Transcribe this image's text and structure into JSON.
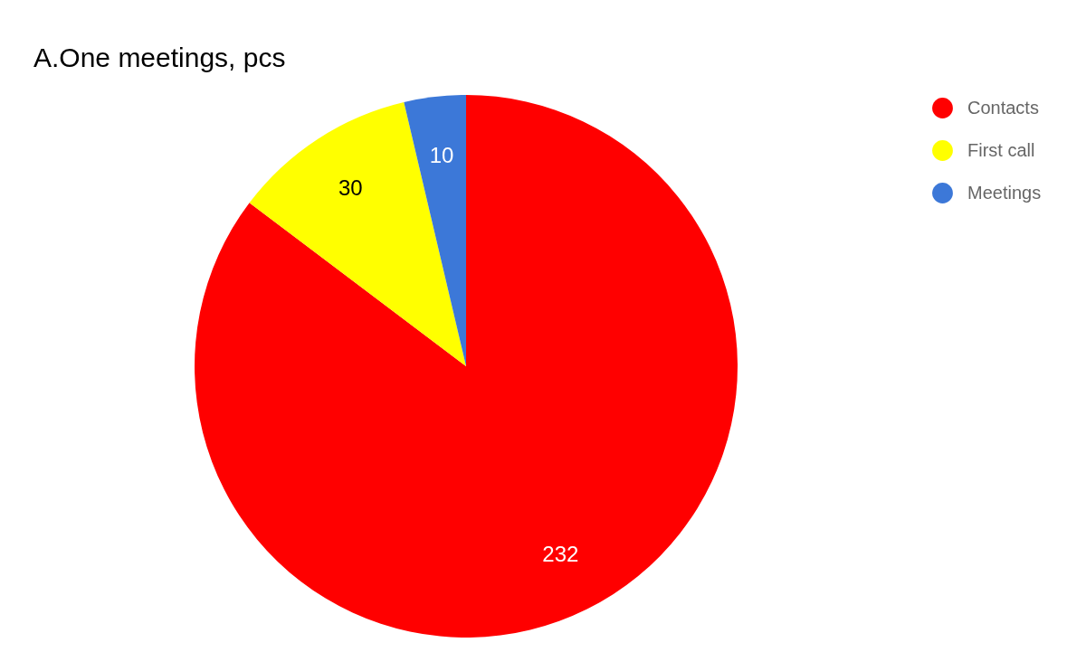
{
  "chart_data": {
    "type": "pie",
    "title": "A.One meetings, pcs",
    "categories": [
      "Contacts",
      "First call",
      "Meetings"
    ],
    "values": [
      232,
      30,
      10
    ],
    "colors": [
      "#ff0000",
      "#ffff00",
      "#3c78d8"
    ],
    "data_labels": true,
    "legend": "top right"
  }
}
